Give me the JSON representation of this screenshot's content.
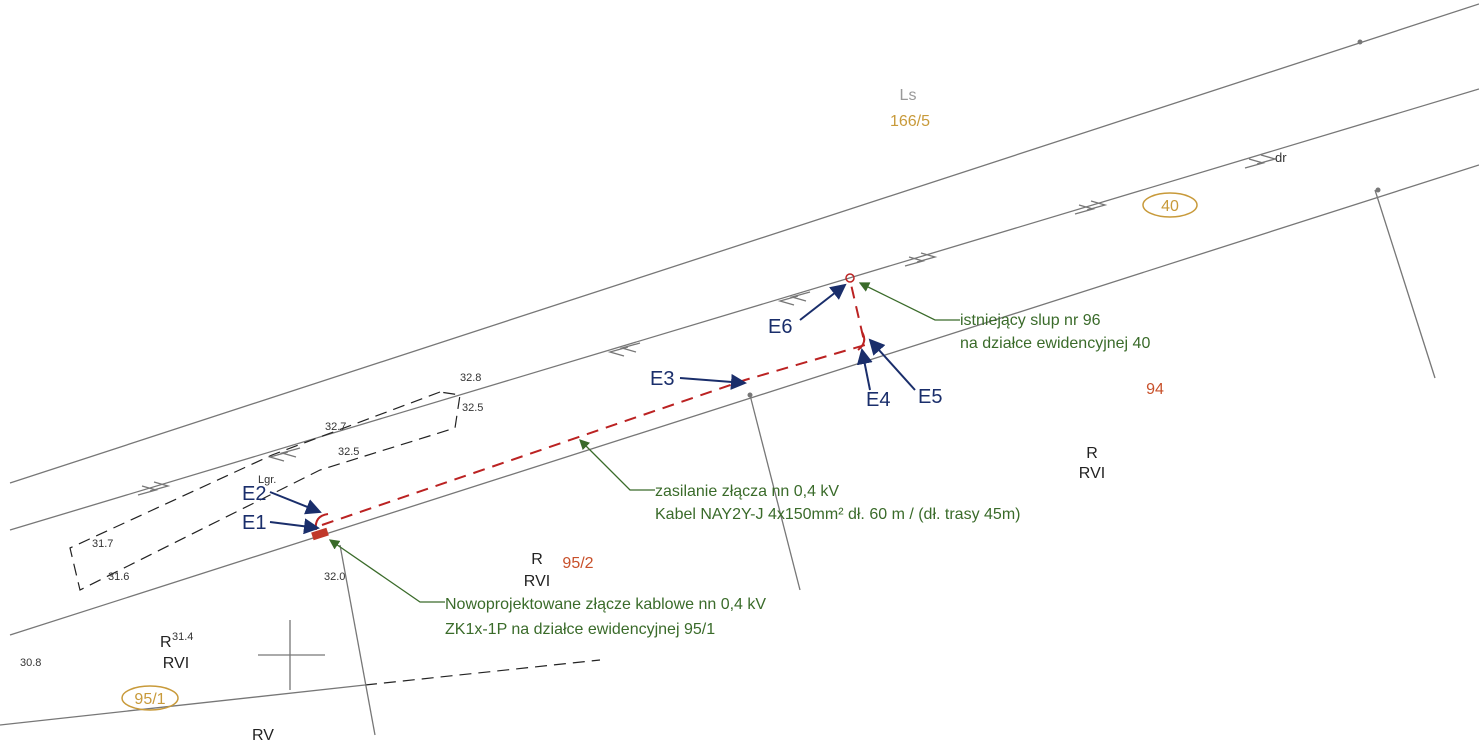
{
  "map": {
    "parcels": [
      {
        "class": "Ls",
        "number": "166/5"
      },
      {
        "number": "40"
      },
      {
        "number": "94",
        "class": "R",
        "subclass": "RVI"
      },
      {
        "number": "95/2",
        "class": "R",
        "subclass": "RVI"
      },
      {
        "number": "95/1",
        "class": "R",
        "subclass": "RVI"
      }
    ],
    "extra_class": "RV",
    "ditch": "dr",
    "boundary": "Lgr.",
    "elevations": [
      "32.8",
      "32.7",
      "32.5",
      "32.5",
      "31.7",
      "31.6",
      "32.0",
      "31.4",
      "30.8"
    ],
    "markers": [
      "E1",
      "E2",
      "E3",
      "E4",
      "E5",
      "E6"
    ],
    "annotations": [
      {
        "lines": [
          "istniejący slup nr 96",
          "na działce ewidencyjnej 40"
        ]
      },
      {
        "lines": [
          "zasilanie złącza nn 0,4 kV",
          "Kabel NAY2Y-J 4x150mm² dł. 60 m / (dł. trasy 45m)"
        ]
      },
      {
        "lines": [
          "Nowoprojektowane złącze kablowe nn 0,4 kV",
          "ZK1x-1P na działce ewidencyjnej 95/1"
        ]
      }
    ]
  }
}
